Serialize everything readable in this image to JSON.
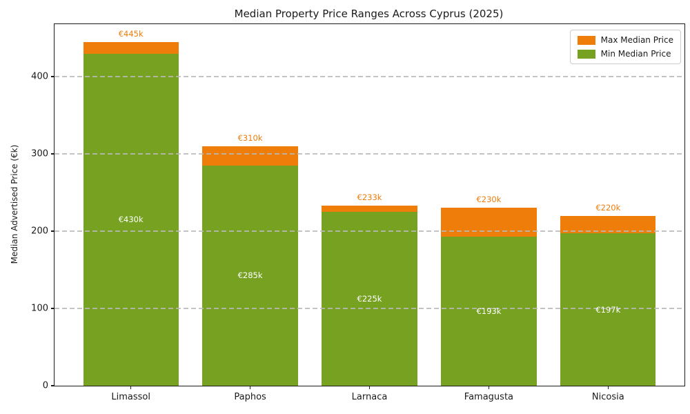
{
  "chart_data": {
    "type": "bar",
    "stacked": true,
    "title": "Median Property Price Ranges Across Cyprus (2025)",
    "xlabel": "",
    "ylabel": "Median Advertised Price (€k)",
    "categories": [
      "Limassol",
      "Paphos",
      "Larnaca",
      "Famagusta",
      "Nicosia"
    ],
    "series": [
      {
        "name": "Min Median Price",
        "color": "#76A121",
        "values": [
          430,
          285,
          225,
          193,
          197
        ]
      },
      {
        "name": "Max Median Price",
        "color": "#EE7D0A",
        "values": [
          445,
          310,
          233,
          230,
          220
        ]
      }
    ],
    "annotations": {
      "max_labels": [
        "€445k",
        "€310k",
        "€233k",
        "€230k",
        "€220k"
      ],
      "min_labels": [
        "€430k",
        "€285k",
        "€225k",
        "€193k",
        "€197k"
      ]
    },
    "yticks": [
      0,
      100,
      200,
      300,
      400
    ],
    "ytick_labels": [
      "0",
      "100",
      "200",
      "300",
      "400"
    ],
    "ylim": [
      0,
      468
    ],
    "grid": "horizontal-dashed",
    "legend": {
      "position": "top-right",
      "entries": [
        {
          "label": "Max Median Price",
          "color": "#EE7D0A"
        },
        {
          "label": "Min Median Price",
          "color": "#76A121"
        }
      ]
    },
    "colors": {
      "max_bar": "#EE7D0A",
      "min_bar": "#76A121",
      "max_label_text": "#EE7D0A",
      "min_label_text": "#ffffff",
      "gridline": "#bcbcbc",
      "axis": "#1a1a1a"
    }
  }
}
